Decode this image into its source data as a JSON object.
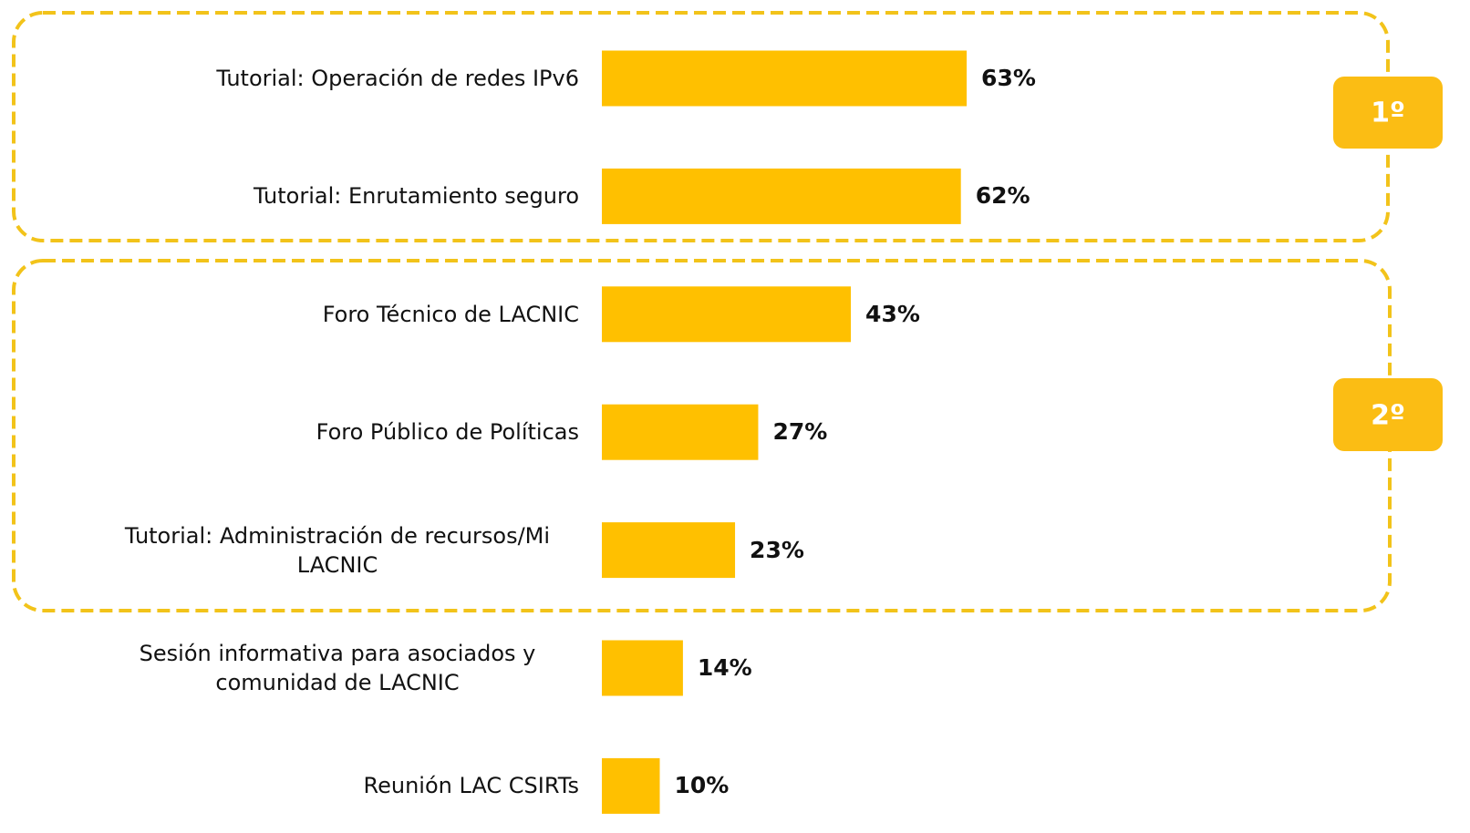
{
  "chart_data": {
    "type": "bar",
    "orientation": "horizontal",
    "categories": [
      "Tutorial: Operación de redes IPv6",
      "Tutorial: Enrutamiento seguro",
      "Foro Técnico de LACNIC",
      "Foro Público de Políticas",
      "Tutorial: Administración de recursos/Mi LACNIC",
      "Sesión informativa para asociados y comunidad de LACNIC",
      "Reunión LAC CSIRTs"
    ],
    "values": [
      63,
      62,
      43,
      27,
      23,
      14,
      10
    ],
    "value_labels": [
      "63%",
      "62%",
      "43%",
      "27%",
      "23%",
      "14%",
      "10%"
    ],
    "color": "#ffc000",
    "annotations": [
      "1º",
      "2º"
    ]
  }
}
